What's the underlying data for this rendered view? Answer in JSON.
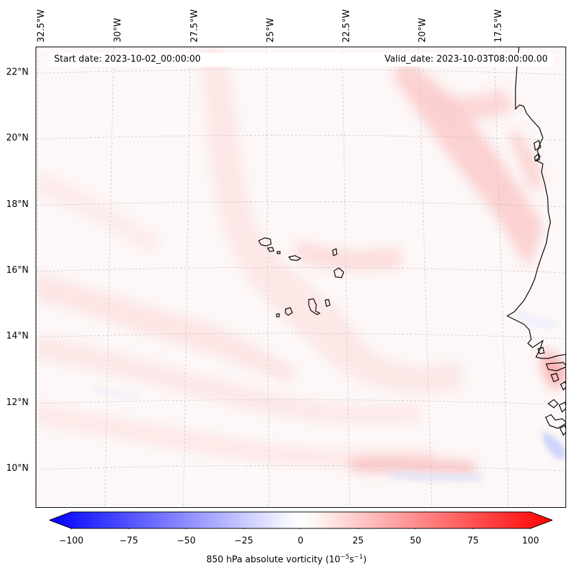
{
  "header": {
    "start_date": "Start date: 2023-10-02_00:00:00",
    "valid_date": "Valid_date: 2023-10-03T08:00:00.00"
  },
  "map": {
    "lon_labels": [
      "32.5°W",
      "30°W",
      "27.5°W",
      "25°W",
      "22.5°W",
      "20°W",
      "17.5°W"
    ],
    "lat_labels": [
      "22°N",
      "20°N",
      "18°N",
      "16°N",
      "14°N",
      "12°N",
      "10°N"
    ],
    "gridlines": true,
    "coastline_color": "#000000"
  },
  "colorbar": {
    "ticks": [
      "−100",
      "−75",
      "−50",
      "−25",
      "0",
      "25",
      "50",
      "75",
      "100"
    ],
    "label_text": "850 hPa absolute vorticity (10",
    "label_exp1": "−5",
    "label_mid": "s",
    "label_exp2": "−1",
    "label_end": ")",
    "range": [
      -100,
      100
    ],
    "min_color": "#0000ff",
    "mid_color": "#ffffff",
    "max_color": "#ff0000"
  }
}
